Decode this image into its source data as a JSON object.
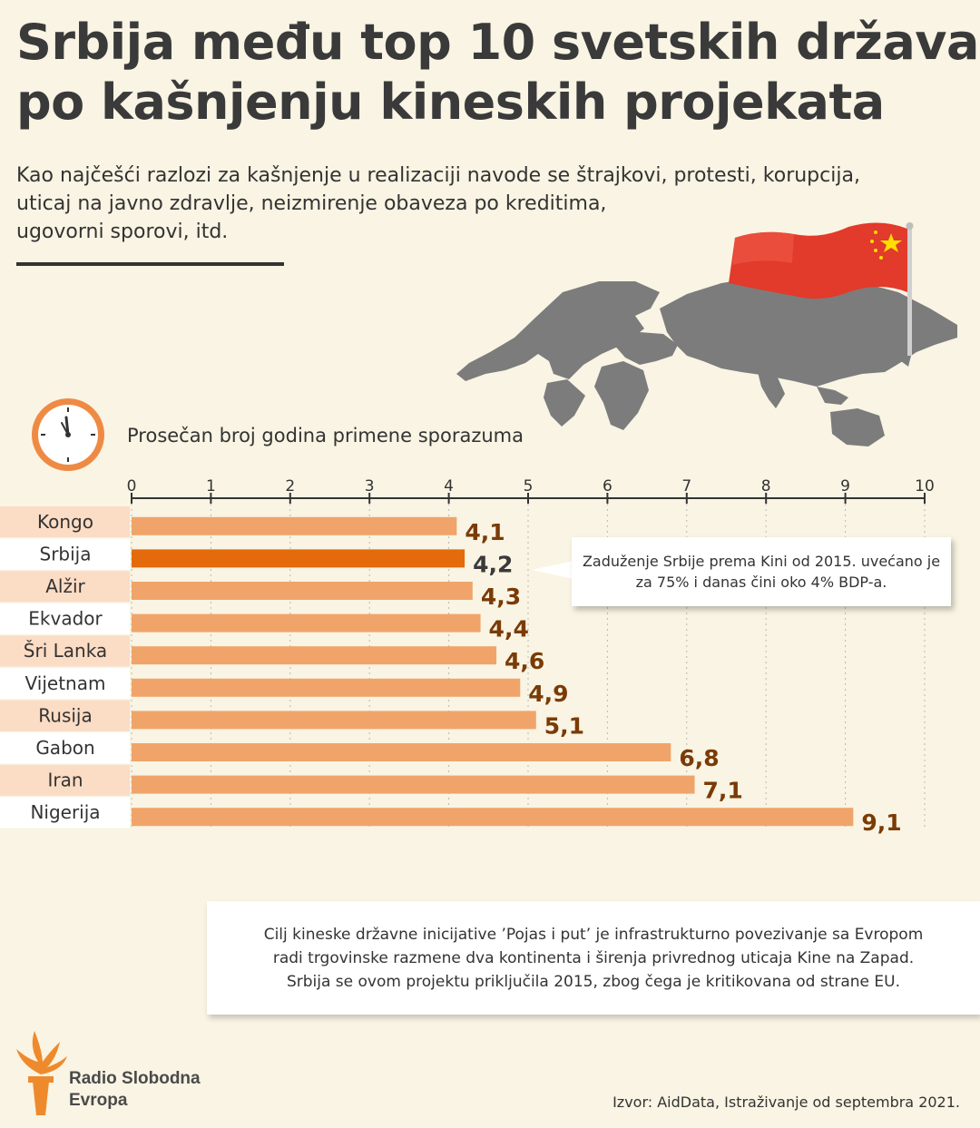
{
  "title_lines": [
    "Srbija među top 10 svetskih država",
    "po kašnjenju kineskih projekata"
  ],
  "subtitle_lines": [
    "Kao najčešći razlozi za kašnjenje u realizaciji navode se štrajkovi, protesti, korupcija,",
    "uticaj na javno zdravlje, neizmirenje obaveza po kreditima,",
    "ugovorni sporovi, itd."
  ],
  "axis_title": "Prosečan broj godina primene sporazuma",
  "chart_data": {
    "type": "bar",
    "orientation": "horizontal",
    "xlim": [
      0,
      10
    ],
    "x_ticks": [
      0,
      1,
      2,
      3,
      4,
      5,
      6,
      7,
      8,
      9,
      10
    ],
    "grid": true,
    "categories": [
      "Kongo",
      "Srbija",
      "Alžir",
      "Ekvador",
      "Šri Lanka",
      "Vijetnam",
      "Rusija",
      "Gabon",
      "Iran",
      "Nigerija"
    ],
    "values": [
      4.1,
      4.2,
      4.3,
      4.4,
      4.6,
      4.9,
      5.1,
      6.8,
      7.1,
      9.1
    ],
    "value_labels": [
      "4,1",
      "4,2",
      "4,3",
      "4,4",
      "4,6",
      "4,9",
      "5,1",
      "6,8",
      "7,1",
      "9,1"
    ],
    "highlight_category": "Srbija",
    "colors": {
      "bar": "#f0a46a",
      "highlight": "#e46a0c",
      "label": "#7a3b06",
      "highlight_label": "#3a3a3a"
    }
  },
  "callout_lines": [
    "Zaduženje Srbije prema Kini od 2015. uvećano je",
    "za 75% i danas čini oko 4% BDP-a."
  ],
  "infobox_lines": [
    "Cilj kineske državne inicijative ’Pojas i put’ je infrastrukturno povezivanje sa Evropom",
    "radi trgovinske razmene dva kontinenta i širenja privrednog uticaja Kine na Zapad.",
    "Srbija se ovom projektu priključila 2015, zbog čega je kritikovana od strane EU."
  ],
  "logo": {
    "line1": "Radio Slobodna",
    "line2": "Evropa",
    "icon": "torch-icon"
  },
  "source": "Izvor: AidData, Istraživanje od septembra 2021.",
  "icons": {
    "clock": "clock-icon",
    "map": "world-map-icon",
    "flag": "china-flag-icon"
  }
}
